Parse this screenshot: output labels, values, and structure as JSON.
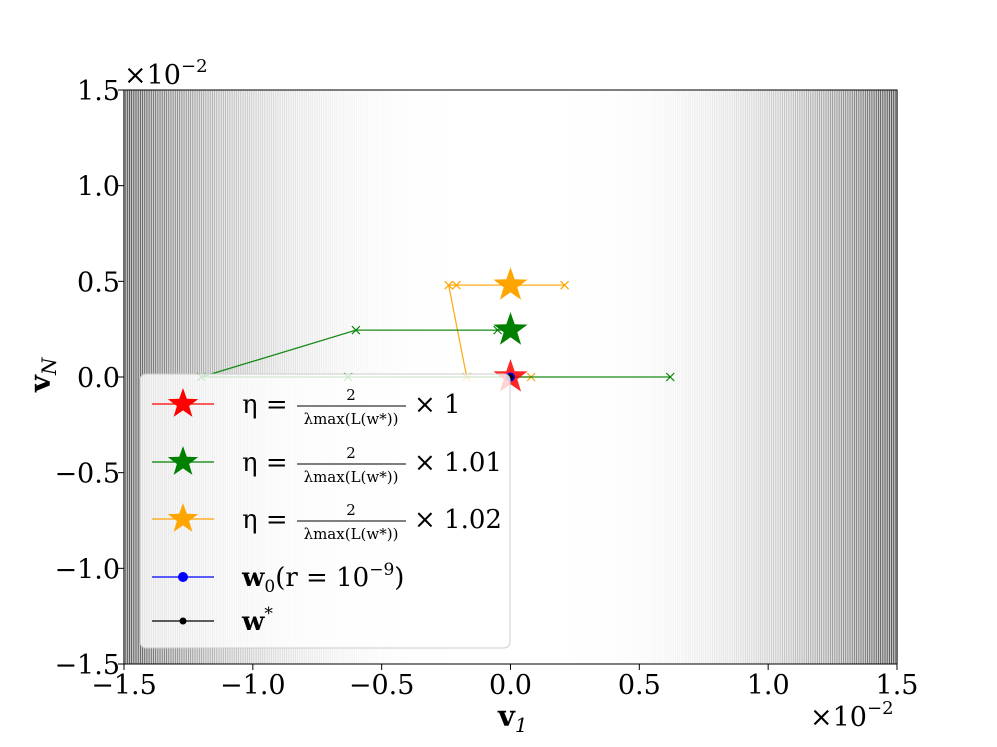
{
  "chart_data": {
    "type": "line",
    "xlabel": "v",
    "xlabel_sub": "1",
    "ylabel": "v",
    "ylabel_sub": "N",
    "x_scale_label": "×10",
    "x_scale_exp": "−2",
    "y_scale_label": "×10",
    "y_scale_exp": "−2",
    "xlim": [
      -1.5,
      1.5
    ],
    "ylim": [
      -1.5,
      1.5
    ],
    "x_ticks": [
      -1.5,
      -1.0,
      -0.5,
      0.0,
      0.5,
      1.0,
      1.5
    ],
    "x_tick_labels": [
      "−1.5",
      "−1.0",
      "−0.5",
      "0.0",
      "0.5",
      "1.0",
      "1.5"
    ],
    "y_ticks": [
      -1.5,
      -1.0,
      -0.5,
      0.0,
      0.5,
      1.0,
      1.5
    ],
    "y_tick_labels": [
      "−1.5",
      "−1.0",
      "−0.5",
      "0.0",
      "0.5",
      "1.0",
      "1.5"
    ],
    "background": "grayscale contour lines, dark near |v1| = 1.5, light near center",
    "grid": false,
    "legend_position": "lower-left",
    "series": [
      {
        "key": "eta1",
        "name": "η = 2/λmax(L(w*)) × 1",
        "legend_multiplier": "× 1",
        "color": "#ff0000",
        "points": [
          [
            0.0,
            0.0
          ]
        ],
        "star": [
          0.0,
          0.0
        ]
      },
      {
        "key": "eta101",
        "name": "η = 2/λmax(L(w*)) × 1.01",
        "legend_multiplier": "× 1.01",
        "color": "#008000",
        "points": [
          [
            0.0,
            0.0
          ],
          [
            0.62,
            0.0
          ],
          [
            -0.63,
            0.0
          ],
          [
            -1.2,
            0.0
          ],
          [
            -0.6,
            0.245
          ],
          [
            -0.05,
            0.245
          ],
          [
            0.0,
            0.245
          ]
        ],
        "star": [
          0.0,
          0.245
        ]
      },
      {
        "key": "eta102",
        "name": "η = 2/λmax(L(w*)) × 1.02",
        "legend_multiplier": "× 1.02",
        "color": "#ffa500",
        "points": [
          [
            0.0,
            0.0
          ],
          [
            0.08,
            0.0
          ],
          [
            -0.17,
            0.0
          ],
          [
            -0.24,
            0.48
          ],
          [
            -0.21,
            0.48
          ],
          [
            0.21,
            0.48
          ],
          [
            0.0,
            0.48
          ]
        ],
        "star": [
          0.0,
          0.48
        ]
      }
    ],
    "markers": [
      {
        "key": "w0",
        "name": "w0(r = 10^-9)",
        "color": "#0000ff",
        "point": [
          0.0,
          0.0
        ]
      },
      {
        "key": "wstar",
        "name": "w*",
        "color": "#000000",
        "point": [
          0.0,
          0.0
        ]
      }
    ],
    "legend": [
      {
        "lhs": "η =",
        "frac_num": "2",
        "frac_den": "λmax(L(w*))",
        "rhs": "× 1",
        "color": "#ff0000",
        "marker": "star"
      },
      {
        "lhs": "η =",
        "frac_num": "2",
        "frac_den": "λmax(L(w*))",
        "rhs": "× 1.01",
        "color": "#008000",
        "marker": "star"
      },
      {
        "lhs": "η =",
        "frac_num": "2",
        "frac_den": "λmax(L(w*))",
        "rhs": "× 1.02",
        "color": "#ffa500",
        "marker": "star"
      },
      {
        "lhs": "w",
        "sub": "0",
        "rest": "(r = 10",
        "sup": "−9",
        "close": ")",
        "color": "#0000ff",
        "marker": "dot"
      },
      {
        "lhs": "w",
        "sup": "*",
        "color": "#000000",
        "marker": "dot"
      }
    ]
  }
}
